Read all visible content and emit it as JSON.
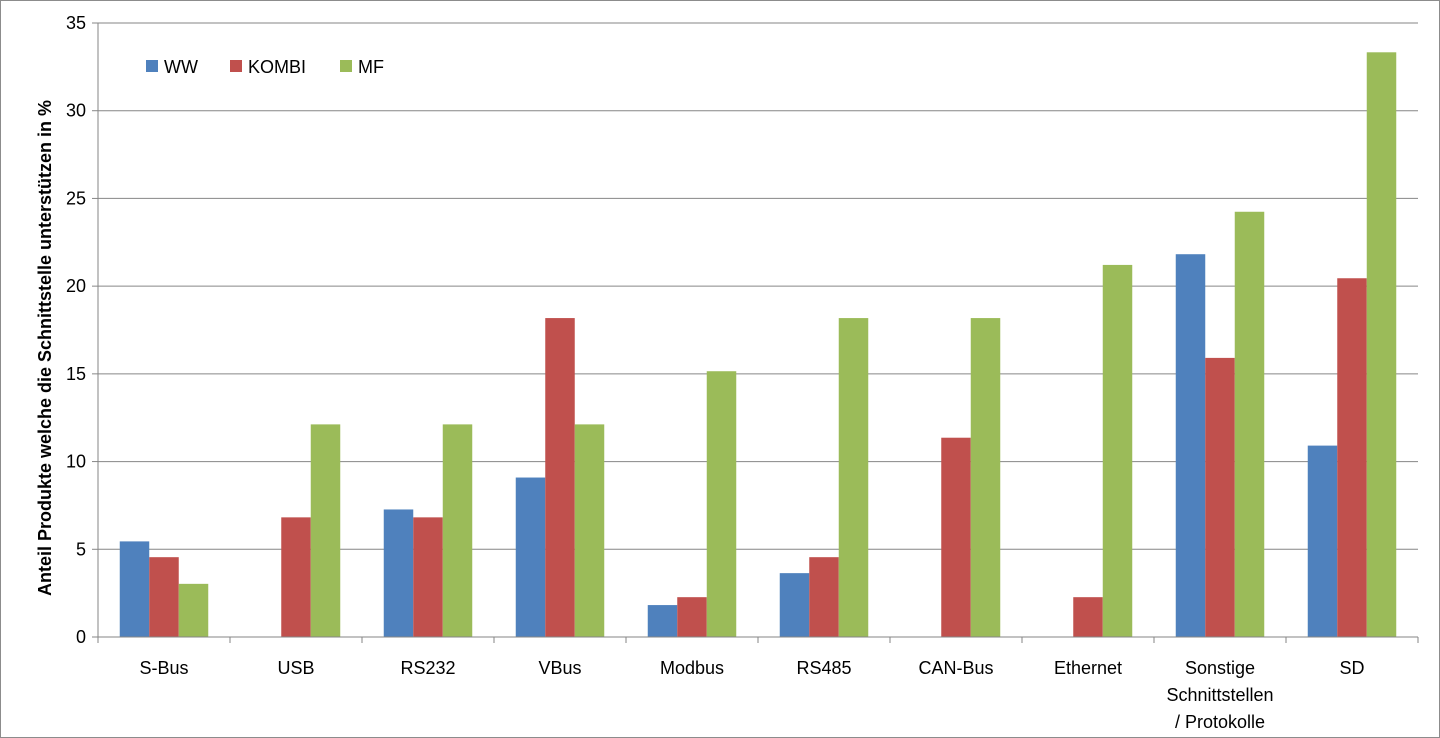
{
  "chart_data": {
    "type": "bar",
    "title": "",
    "xlabel": "",
    "ylabel": "Anteil Produkte welche die Schnittstelle unterstützen in %",
    "ylim": [
      0,
      35
    ],
    "yticks": [
      0,
      5,
      10,
      15,
      20,
      25,
      30,
      35
    ],
    "grid": true,
    "legend_position": "top-left",
    "categories": [
      [
        "S-Bus"
      ],
      [
        "USB"
      ],
      [
        "RS232"
      ],
      [
        "VBus"
      ],
      [
        "Modbus"
      ],
      [
        "RS485"
      ],
      [
        "CAN-Bus"
      ],
      [
        "Ethernet"
      ],
      [
        "Sonstige",
        "Schnittstellen",
        "/ Protokolle"
      ],
      [
        "SD"
      ]
    ],
    "series": [
      {
        "name": "WW",
        "color": "#4f81bd",
        "values": [
          5.45,
          0,
          7.27,
          9.09,
          1.82,
          3.64,
          0,
          0,
          21.82,
          10.91
        ]
      },
      {
        "name": "KOMBI",
        "color": "#c0504d",
        "values": [
          4.55,
          6.82,
          6.82,
          18.18,
          2.27,
          4.55,
          11.36,
          2.27,
          15.91,
          20.45
        ]
      },
      {
        "name": "MF",
        "color": "#9bbb59",
        "values": [
          3.03,
          12.12,
          12.12,
          12.12,
          15.15,
          18.18,
          18.18,
          21.21,
          24.24,
          33.33
        ]
      }
    ]
  }
}
